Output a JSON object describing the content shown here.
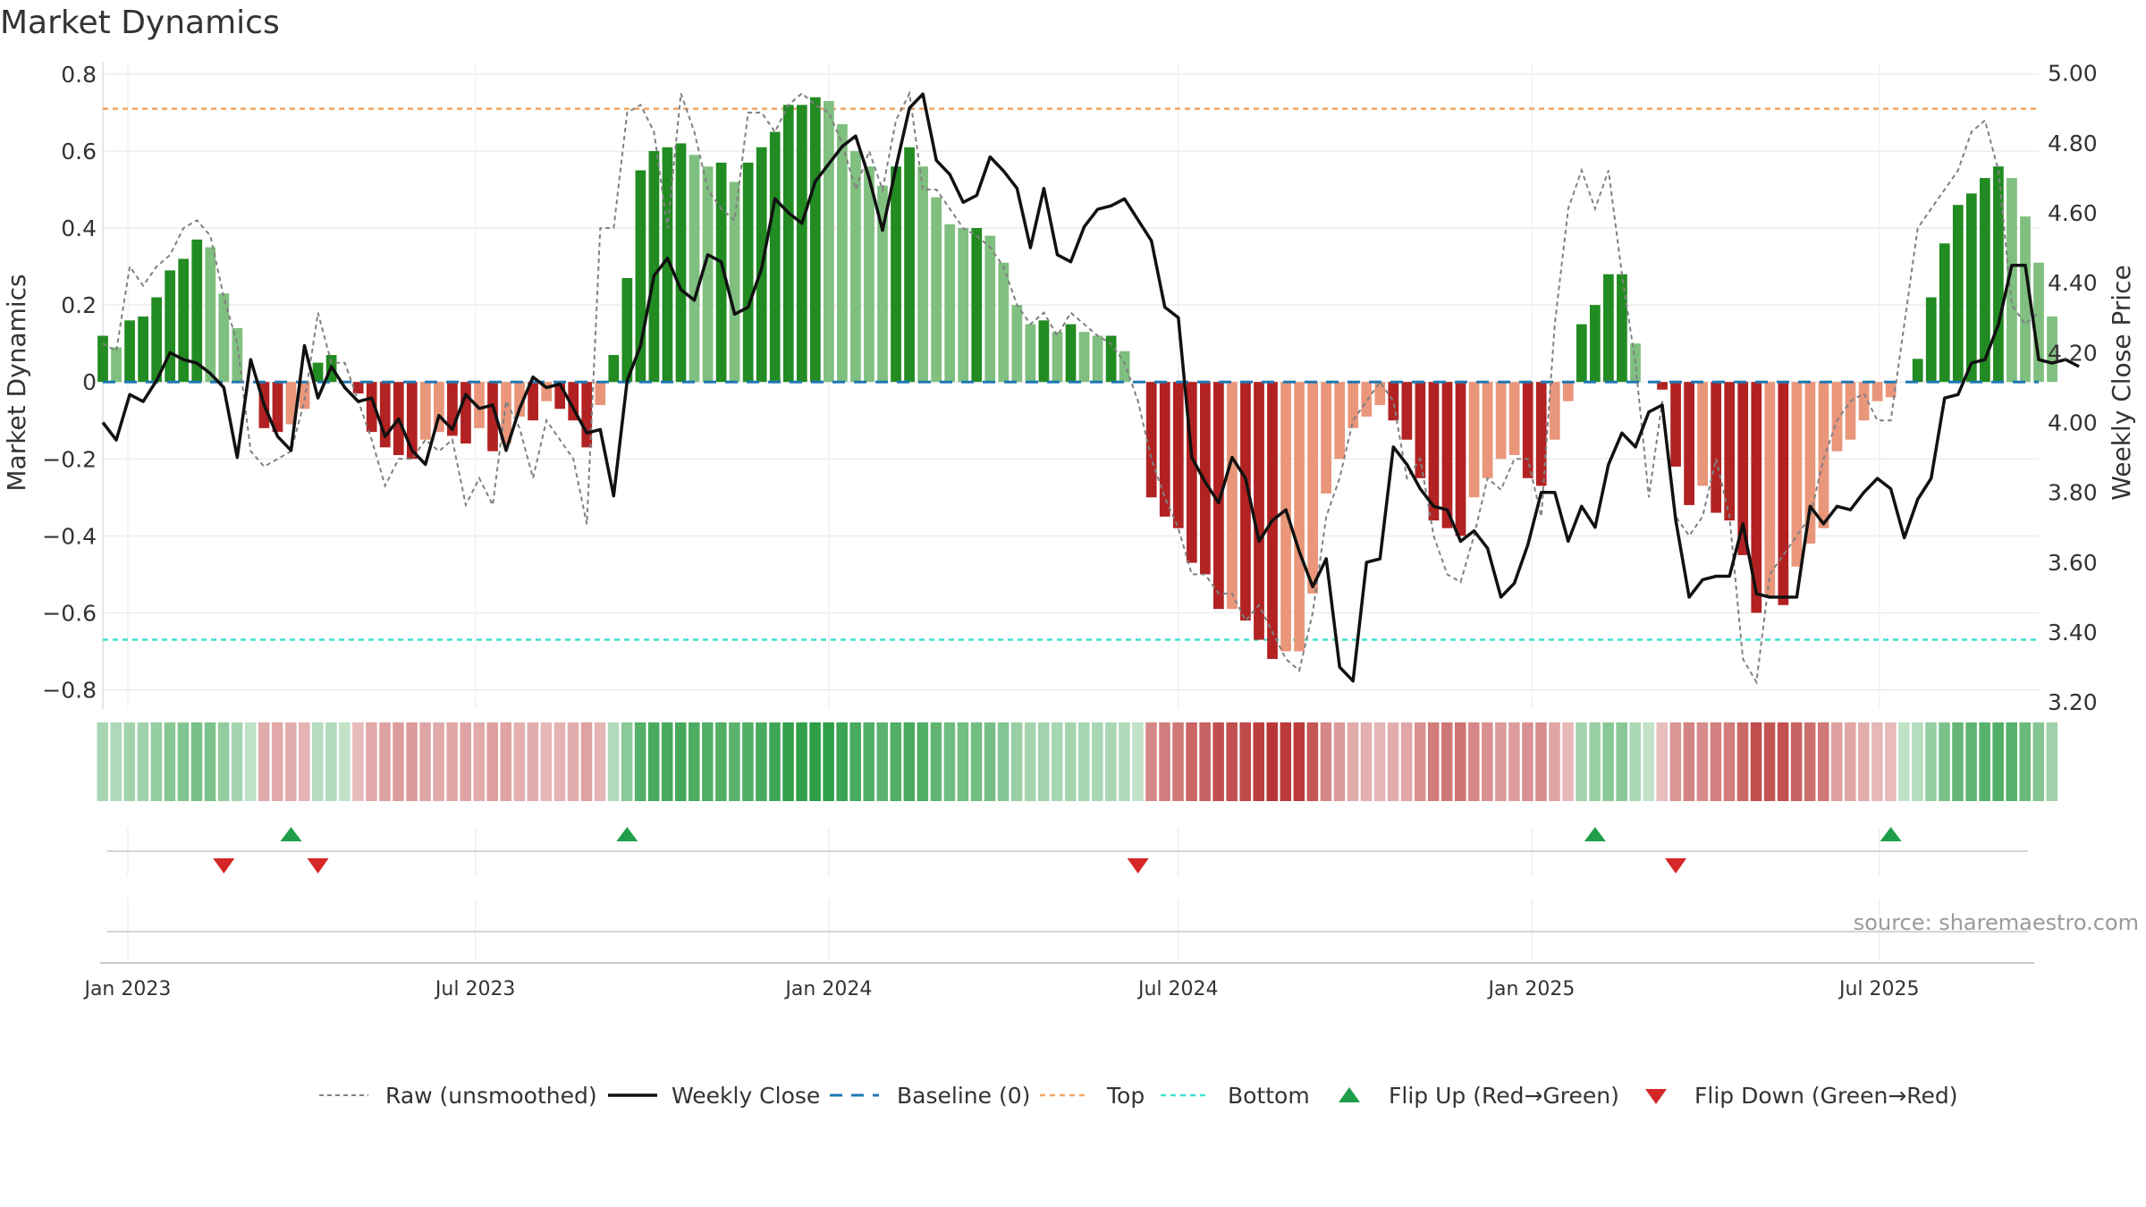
{
  "title": "Market Dynamics",
  "source_note": "source: sharemaestro.com",
  "colors": {
    "strong_green": "#228b22",
    "light_green": "#7fbf7f",
    "strong_red": "#b22222",
    "light_red": "#e9967a",
    "raw_line": "#808080",
    "close_line": "#111111",
    "baseline": "#1f77b4",
    "top_line": "#f4a460",
    "bottom_line": "#40e0d0",
    "flip_up": "#1e9e4a",
    "flip_down": "#d62728"
  },
  "chart_data": {
    "type": "bar",
    "left_axis": {
      "label": "Market Dynamics",
      "ticks": [
        "0.8",
        "0.6",
        "0.4",
        "0.2",
        "0",
        "−0.2",
        "−0.4",
        "−0.6",
        "−0.8"
      ],
      "ylim": [
        -0.85,
        0.83
      ]
    },
    "right_axis": {
      "label": "Weekly Close Price",
      "ticks": [
        "5.00",
        "4.80",
        "4.60",
        "4.40",
        "4.20",
        "4.00",
        "3.80",
        "3.60",
        "3.40",
        "3.20"
      ],
      "ylim": [
        3.18,
        5.03
      ]
    },
    "x_ticks": [
      "Jan 2023",
      "Jul 2023",
      "Jan 2024",
      "Jul 2024",
      "Jan 2025",
      "Jul 2025"
    ],
    "x_tick_dates": [
      "2023-01-01",
      "2023-07-01",
      "2024-01-01",
      "2024-07-01",
      "2025-01-01",
      "2025-07-01"
    ],
    "x_range": [
      "2022-12-19",
      "2025-09-22"
    ],
    "top_level": 0.71,
    "bottom_level": -0.67,
    "start_date": "2022-12-19",
    "interval_days": 7,
    "bars": [
      0.12,
      0.09,
      0.16,
      0.17,
      0.22,
      0.29,
      0.32,
      0.37,
      0.35,
      0.23,
      0.14,
      0,
      -0.12,
      -0.13,
      -0.11,
      -0.07,
      0.05,
      0.07,
      0,
      -0.03,
      -0.13,
      -0.17,
      -0.19,
      -0.2,
      -0.15,
      -0.13,
      -0.14,
      -0.16,
      -0.12,
      -0.18,
      -0.16,
      -0.09,
      -0.1,
      -0.05,
      -0.07,
      -0.1,
      -0.17,
      -0.06,
      0.07,
      0.27,
      0.55,
      0.6,
      0.61,
      0.62,
      0.59,
      0.56,
      0.57,
      0.52,
      0.57,
      0.61,
      0.65,
      0.72,
      0.72,
      0.74,
      0.73,
      0.67,
      0.6,
      0.56,
      0.51,
      0.56,
      0.61,
      0.56,
      0.48,
      0.41,
      0.4,
      0.4,
      0.38,
      0.31,
      0.2,
      0.15,
      0.16,
      0.13,
      0.15,
      0.13,
      0.12,
      0.12,
      0.08,
      0,
      -0.3,
      -0.35,
      -0.38,
      -0.47,
      -0.5,
      -0.59,
      -0.59,
      -0.62,
      -0.67,
      -0.72,
      -0.7,
      -0.7,
      -0.55,
      -0.29,
      -0.2,
      -0.12,
      -0.09,
      -0.06,
      -0.1,
      -0.15,
      -0.25,
      -0.36,
      -0.38,
      -0.4,
      -0.3,
      -0.25,
      -0.2,
      -0.19,
      -0.25,
      -0.27,
      -0.15,
      -0.05,
      0.15,
      0.2,
      0.28,
      0.28,
      0.1,
      0,
      -0.02,
      -0.22,
      -0.32,
      -0.27,
      -0.34,
      -0.36,
      -0.45,
      -0.6,
      -0.56,
      -0.58,
      -0.48,
      -0.42,
      -0.38,
      -0.18,
      -0.15,
      -0.1,
      -0.05,
      -0.04,
      0,
      0.06,
      0.22,
      0.36,
      0.46,
      0.49,
      0.53,
      0.56,
      0.53,
      0.43,
      0.31,
      0.17
    ],
    "raw": [
      0.1,
      0.08,
      0.3,
      0.25,
      0.3,
      0.33,
      0.4,
      0.42,
      0.38,
      0.22,
      0.1,
      -0.18,
      -0.22,
      -0.2,
      -0.18,
      -0.05,
      0.18,
      0.05,
      0.05,
      -0.05,
      -0.15,
      -0.27,
      -0.2,
      -0.2,
      -0.15,
      -0.18,
      -0.15,
      -0.32,
      -0.25,
      -0.32,
      -0.05,
      -0.12,
      -0.25,
      -0.1,
      -0.15,
      -0.2,
      -0.37,
      0.4,
      0.4,
      0.7,
      0.72,
      0.65,
      0.4,
      0.75,
      0.65,
      0.5,
      0.45,
      0.42,
      0.7,
      0.7,
      0.65,
      0.72,
      0.75,
      0.72,
      0.7,
      0.62,
      0.5,
      0.6,
      0.5,
      0.68,
      0.75,
      0.5,
      0.5,
      0.45,
      0.4,
      0.38,
      0.35,
      0.3,
      0.2,
      0.15,
      0.18,
      0.12,
      0.18,
      0.15,
      0.12,
      0.1,
      0.05,
      -0.05,
      -0.2,
      -0.3,
      -0.38,
      -0.5,
      -0.5,
      -0.55,
      -0.55,
      -0.62,
      -0.58,
      -0.65,
      -0.72,
      -0.75,
      -0.6,
      -0.35,
      -0.25,
      -0.1,
      -0.05,
      0,
      -0.05,
      -0.25,
      -0.2,
      -0.4,
      -0.5,
      -0.52,
      -0.4,
      -0.25,
      -0.28,
      -0.2,
      -0.2,
      -0.35,
      0.15,
      0.45,
      0.55,
      0.45,
      0.55,
      0.28,
      0.05,
      -0.3,
      -0.05,
      -0.35,
      -0.4,
      -0.35,
      -0.2,
      -0.35,
      -0.72,
      -0.78,
      -0.5,
      -0.45,
      -0.4,
      -0.35,
      -0.2,
      -0.1,
      -0.05,
      -0.03,
      -0.1,
      -0.1,
      0.15,
      0.4,
      0.45,
      0.5,
      0.55,
      0.65,
      0.68,
      0.55,
      0.2,
      0.15,
      0.18
    ],
    "close": [
      4.0,
      3.95,
      4.08,
      4.06,
      4.12,
      4.2,
      4.18,
      4.17,
      4.14,
      4.1,
      3.9,
      4.18,
      4.05,
      3.96,
      3.92,
      4.22,
      4.07,
      4.16,
      4.1,
      4.06,
      4.07,
      3.96,
      4.01,
      3.92,
      3.88,
      4.02,
      3.98,
      4.08,
      4.04,
      4.05,
      3.92,
      4.04,
      4.13,
      4.1,
      4.11,
      4.04,
      3.97,
      3.98,
      3.79,
      4.12,
      4.22,
      4.42,
      4.47,
      4.38,
      4.35,
      4.48,
      4.46,
      4.31,
      4.33,
      4.44,
      4.64,
      4.6,
      4.57,
      4.69,
      4.74,
      4.79,
      4.82,
      4.7,
      4.55,
      4.73,
      4.9,
      4.94,
      4.75,
      4.71,
      4.63,
      4.65,
      4.76,
      4.72,
      4.67,
      4.5,
      4.67,
      4.48,
      4.46,
      4.56,
      4.61,
      4.62,
      4.64,
      4.58,
      4.52,
      4.33,
      4.3,
      3.9,
      3.83,
      3.77,
      3.9,
      3.84,
      3.66,
      3.72,
      3.75,
      3.63,
      3.53,
      3.61,
      3.3,
      3.26,
      3.6,
      3.61,
      3.93,
      3.88,
      3.81,
      3.76,
      3.75,
      3.66,
      3.69,
      3.64,
      3.5,
      3.54,
      3.65,
      3.8,
      3.8,
      3.66,
      3.76,
      3.7,
      3.88,
      3.97,
      3.93,
      4.03,
      4.05,
      3.72,
      3.5,
      3.55,
      3.56,
      3.56,
      3.71,
      3.51,
      3.5,
      3.5,
      3.5,
      3.76,
      3.71,
      3.76,
      3.75,
      3.8,
      3.84,
      3.81,
      3.67,
      3.78,
      3.84,
      4.07,
      4.08,
      4.17,
      4.18,
      4.28,
      4.45,
      4.45,
      4.18,
      4.17,
      4.18,
      4.16
    ],
    "flip_up_dates": [
      "2023-03-27",
      "2023-09-18",
      "2025-02-03",
      "2025-07-07"
    ],
    "flip_down_dates": [
      "2023-02-20",
      "2023-04-10",
      "2024-06-10",
      "2025-03-17"
    ]
  },
  "legend": [
    {
      "key": "raw",
      "label": "Raw (unsmoothed)"
    },
    {
      "key": "close",
      "label": "Weekly Close"
    },
    {
      "key": "baseline",
      "label": "Baseline (0)"
    },
    {
      "key": "top",
      "label": "Top"
    },
    {
      "key": "bottom",
      "label": "Bottom"
    },
    {
      "key": "flip_up",
      "label": "Flip Up (Red→Green)"
    },
    {
      "key": "flip_down",
      "label": "Flip Down (Green→Red)"
    }
  ]
}
